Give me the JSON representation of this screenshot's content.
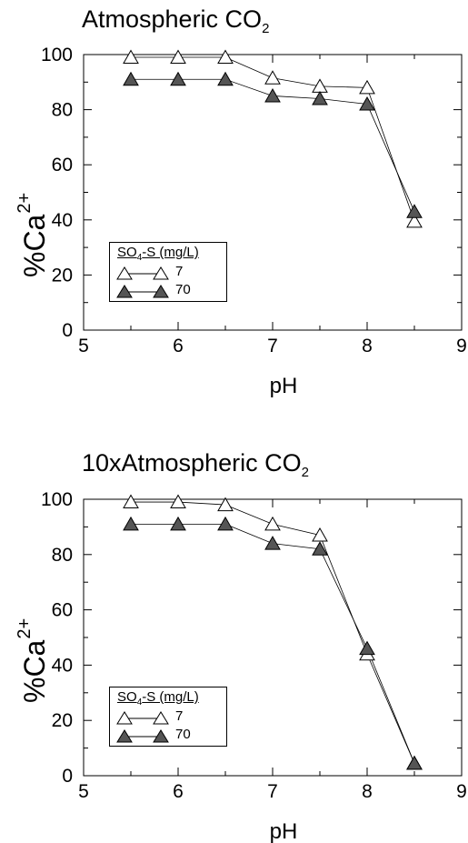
{
  "panels": [
    {
      "title_main": "Atmospheric CO",
      "title_sub": "2",
      "ylabel_main": "%Ca",
      "ylabel_sup": "2+",
      "xlabel": "pH",
      "legend": {
        "title_main": "SO",
        "title_sub": "4",
        "title_rest": "-S (mg/L)",
        "labels": [
          "7",
          "70"
        ]
      }
    },
    {
      "title_main": "10xAtmospheric CO",
      "title_sub": "2",
      "ylabel_main": "%Ca",
      "ylabel_sup": "2+",
      "xlabel": "pH",
      "legend": {
        "title_main": "SO",
        "title_sub": "4",
        "title_rest": "-S (mg/L)",
        "labels": [
          "7",
          "70"
        ]
      }
    }
  ],
  "chart_data": [
    {
      "type": "line",
      "title": "Atmospheric CO2",
      "xlabel": "pH",
      "ylabel": "%Ca2+",
      "xlim": [
        5,
        9
      ],
      "ylim": [
        0,
        100
      ],
      "xticks": [
        5,
        6,
        7,
        8,
        9
      ],
      "yticks": [
        0,
        20,
        40,
        60,
        80,
        100
      ],
      "legend_title": "SO4-S (mg/L)",
      "legend_position": "bottom-left",
      "grid": false,
      "x": [
        5.5,
        6.0,
        6.5,
        7.0,
        7.5,
        8.0,
        8.5
      ],
      "series": [
        {
          "name": "7",
          "marker": "open-triangle",
          "values": [
            99,
            99,
            99,
            91.5,
            88.5,
            88,
            39.5
          ]
        },
        {
          "name": "70",
          "marker": "filled-triangle",
          "values": [
            91,
            91,
            91,
            85,
            84,
            82,
            43
          ]
        }
      ]
    },
    {
      "type": "line",
      "title": "10xAtmospheric CO2",
      "xlabel": "pH",
      "ylabel": "%Ca2+",
      "xlim": [
        5,
        9
      ],
      "ylim": [
        0,
        100
      ],
      "xticks": [
        5,
        6,
        7,
        8,
        9
      ],
      "yticks": [
        0,
        20,
        40,
        60,
        80,
        100
      ],
      "legend_title": "SO4-S (mg/L)",
      "legend_position": "bottom-left",
      "grid": false,
      "x": [
        5.5,
        6.0,
        6.5,
        7.0,
        7.5,
        8.0,
        8.5
      ],
      "series": [
        {
          "name": "7",
          "marker": "open-triangle",
          "values": [
            99,
            99,
            98,
            91,
            87,
            44,
            4.5
          ]
        },
        {
          "name": "70",
          "marker": "filled-triangle",
          "values": [
            91,
            91,
            91,
            84,
            82,
            46,
            4.5
          ]
        }
      ]
    }
  ],
  "colors": {
    "open_marker_fill": "#ffffff",
    "filled_marker_fill": "#555555",
    "line": "#000000"
  }
}
